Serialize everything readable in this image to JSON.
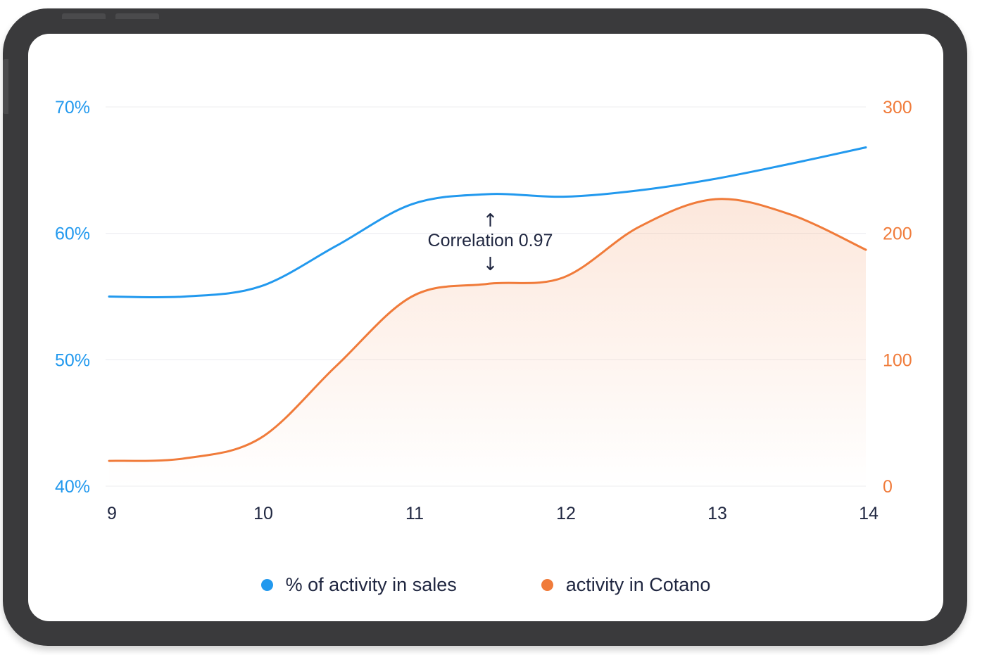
{
  "chart_data": {
    "type": "line",
    "x": [
      9,
      10,
      11,
      12,
      13,
      14
    ],
    "x_tick_labels": [
      "9",
      "10",
      "11",
      "12",
      "13",
      "14"
    ],
    "y_left": {
      "ylim": [
        40,
        70
      ],
      "tick_labels": [
        "40%",
        "50%",
        "60%",
        "70%"
      ],
      "ticks": [
        40,
        50,
        60,
        70
      ],
      "color": "#2299ee"
    },
    "y_right": {
      "ylim": [
        0,
        300
      ],
      "tick_labels": [
        "0",
        "100",
        "200",
        "300"
      ],
      "ticks": [
        0,
        100,
        200,
        300
      ],
      "color": "#f07b3a"
    },
    "series": [
      {
        "name": "% of activity in sales",
        "axis": "left",
        "color": "#2299ee",
        "x": [
          9,
          9.5,
          10,
          10.5,
          11,
          11.5,
          12,
          12.5,
          13,
          13.5,
          14
        ],
        "values": [
          55,
          55,
          55.8,
          59,
          62.3,
          63.1,
          62.9,
          63.4,
          64.3,
          65.5,
          66.8
        ]
      },
      {
        "name": "activity in Cotano",
        "axis": "right",
        "color": "#f07b3a",
        "x": [
          9,
          9.5,
          10,
          10.5,
          11,
          11.5,
          12,
          12.5,
          13,
          13.5,
          14
        ],
        "values": [
          20,
          22,
          38,
          95,
          150,
          160,
          165,
          205,
          227,
          215,
          187
        ]
      }
    ],
    "annotation": {
      "text": "Correlation 0.97",
      "x": 11.5
    },
    "grid": true,
    "legend_placement": "bottom"
  }
}
